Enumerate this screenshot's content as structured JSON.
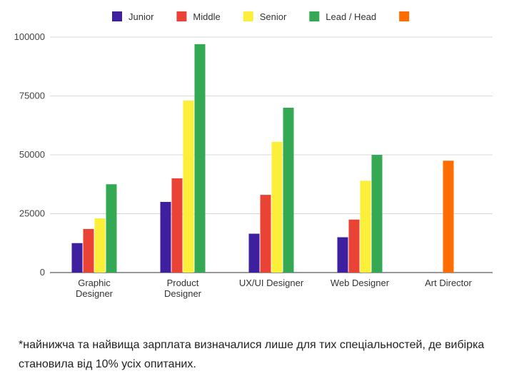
{
  "chart_data": {
    "type": "bar",
    "categories": [
      "Graphic\nDesigner",
      "Product\nDesigner",
      "UX/UI Designer",
      "Web Designer",
      "Art Director"
    ],
    "series": [
      {
        "name": "Junior",
        "color": "#3d1fa0",
        "values": [
          12500,
          30000,
          16500,
          15000,
          null
        ]
      },
      {
        "name": "Middle",
        "color": "#ea4335",
        "values": [
          18500,
          40000,
          33000,
          22500,
          null
        ]
      },
      {
        "name": "Senior",
        "color": "#fbef3a",
        "values": [
          23000,
          73000,
          55500,
          39000,
          null
        ]
      },
      {
        "name": "Lead / Head",
        "color": "#34a853",
        "values": [
          37500,
          97000,
          70000,
          50000,
          null
        ]
      },
      {
        "name": "",
        "color": "#ff6d01",
        "values": [
          null,
          null,
          null,
          null,
          47500
        ]
      }
    ],
    "yticks": [
      "0",
      "25000",
      "50000",
      "75000",
      "100000"
    ],
    "ylim": [
      0,
      100000
    ],
    "legend_position": "top",
    "grid": true
  },
  "footnote": "*найнижча та найвища зарплата визначалися лише для тих спеціальностей, де вибірка становила від 10% усіх опитаних."
}
